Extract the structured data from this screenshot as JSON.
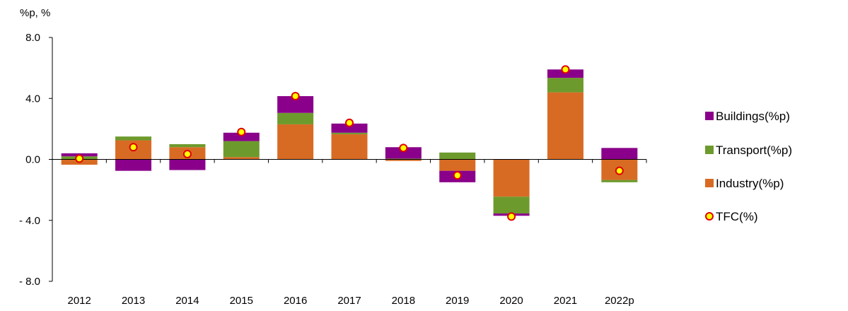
{
  "chart_data": {
    "type": "bar",
    "unit_label": "%p, %",
    "categories": [
      "2012",
      "2013",
      "2014",
      "2015",
      "2016",
      "2017",
      "2018",
      "2019",
      "2020",
      "2021",
      "2022p"
    ],
    "series": [
      {
        "name": "Industry(%p)",
        "kind": "stacked-bar",
        "color": "#d86b24",
        "values": [
          -0.35,
          1.25,
          0.8,
          0.15,
          2.3,
          1.65,
          -0.1,
          -0.75,
          -2.45,
          4.4,
          -1.35
        ]
      },
      {
        "name": "Transport(%p)",
        "kind": "stacked-bar",
        "color": "#6d9a2c",
        "values": [
          0.2,
          0.25,
          0.2,
          1.05,
          0.75,
          0.1,
          0.05,
          0.45,
          -1.1,
          0.95,
          -0.15
        ]
      },
      {
        "name": "Buildings(%p)",
        "kind": "stacked-bar",
        "color": "#8a008a",
        "values": [
          0.2,
          -0.75,
          -0.7,
          0.55,
          1.1,
          0.6,
          0.75,
          -0.75,
          -0.15,
          0.55,
          0.75
        ]
      },
      {
        "name": "TFC(%)",
        "kind": "marker",
        "color": "#ffff00",
        "edge_color": "#e00000",
        "values": [
          0.05,
          0.8,
          0.35,
          1.8,
          4.15,
          2.4,
          0.75,
          -1.05,
          -3.75,
          5.9,
          -0.75
        ]
      }
    ],
    "legend_order": [
      "Buildings(%p)",
      "Transport(%p)",
      "Industry(%p)",
      "TFC(%)"
    ],
    "legend_position": "right",
    "yticks": [
      "8.0",
      "4.0",
      "0.0",
      "- 4.0",
      "- 8.0"
    ],
    "ytick_values": [
      8,
      4,
      0,
      -4,
      -8
    ],
    "ylim": [
      -8,
      8
    ],
    "grid": false
  }
}
